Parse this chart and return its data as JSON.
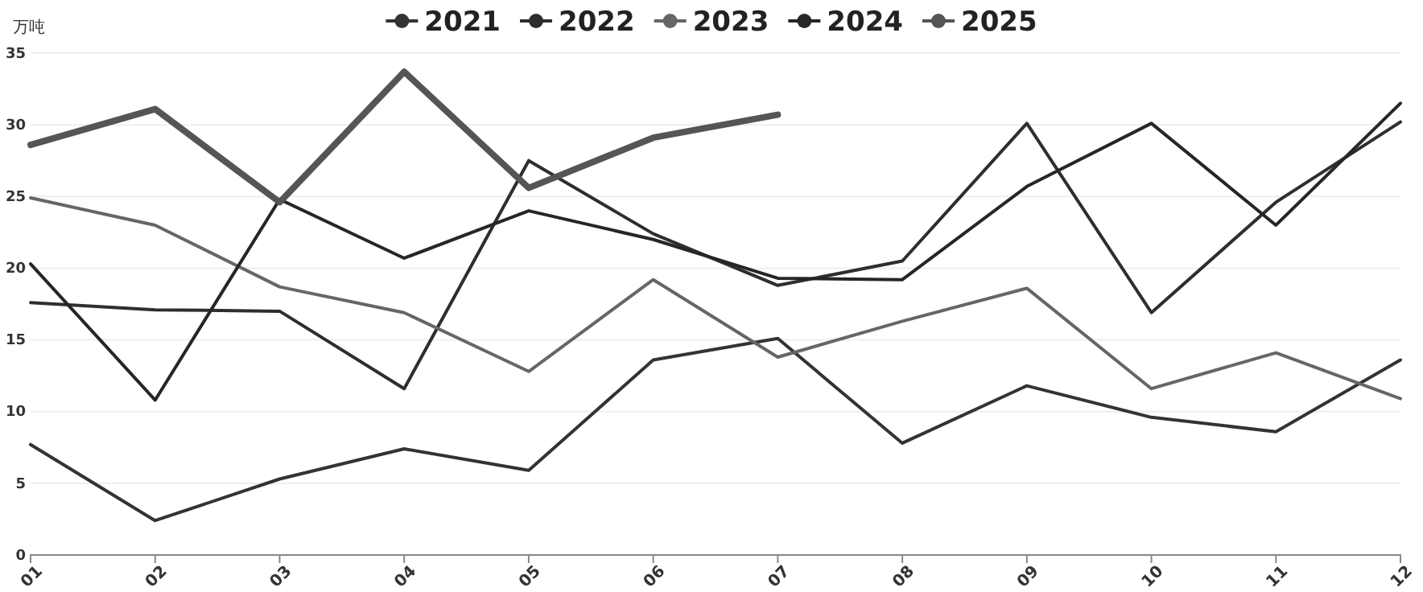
{
  "chart_data": {
    "type": "line",
    "ylabel": "万吨",
    "categories": [
      "01",
      "02",
      "03",
      "04",
      "05",
      "06",
      "07",
      "08",
      "09",
      "10",
      "11",
      "12"
    ],
    "ylim": [
      0,
      35
    ],
    "yticks": [
      0,
      5,
      10,
      15,
      20,
      25,
      30,
      35
    ],
    "grid": "y",
    "legend": "top",
    "marker": "none",
    "line_style": "solid",
    "series": [
      {
        "name": "2021",
        "color": "#333333",
        "values": [
          7.7,
          2.4,
          5.3,
          7.4,
          5.9,
          13.6,
          15.1,
          7.8,
          11.8,
          9.6,
          8.6,
          13.6
        ]
      },
      {
        "name": "2022",
        "color": "#2e2e2e",
        "values": [
          17.6,
          17.1,
          17.0,
          11.6,
          27.5,
          22.4,
          18.8,
          20.5,
          30.1,
          16.9,
          24.6,
          30.2
        ]
      },
      {
        "name": "2023",
        "color": "#666666",
        "values": [
          24.9,
          23.0,
          18.7,
          16.9,
          12.8,
          19.2,
          13.8,
          16.3,
          18.6,
          11.6,
          14.1,
          10.9
        ]
      },
      {
        "name": "2024",
        "color": "#262626",
        "values": [
          20.3,
          10.8,
          24.8,
          20.7,
          24.0,
          22.0,
          19.3,
          19.2,
          25.7,
          30.1,
          23.0,
          31.5
        ]
      },
      {
        "name": "2025",
        "color": "#555555",
        "values": [
          28.6,
          31.1,
          24.6,
          33.7,
          25.6,
          29.1,
          30.7,
          null,
          null,
          null,
          null,
          null
        ]
      }
    ]
  }
}
